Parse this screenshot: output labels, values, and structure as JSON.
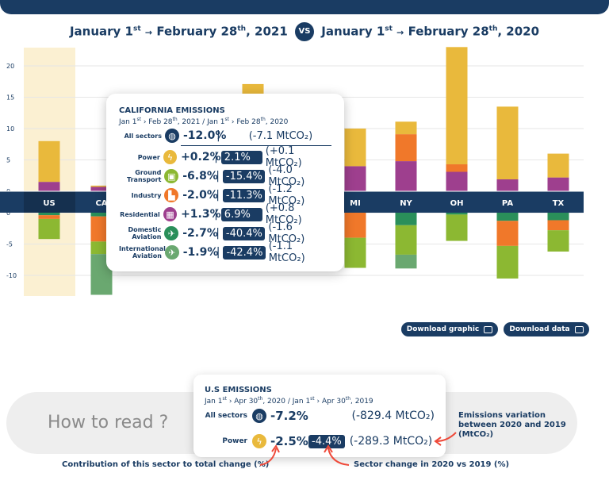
{
  "header": {
    "period_a_start": "January 1",
    "period_a_end": "February 28",
    "period_a_year": ", 2021",
    "vs": "VS",
    "period_b_start": "January 1",
    "period_b_end": "February 28",
    "period_b_year": ", 2020",
    "sup_st": "st",
    "sup_th": "th",
    "arrow": "→"
  },
  "colors": {
    "power": "#e9b93c",
    "ground_transport": "#8cb832",
    "industry": "#f0782a",
    "residential": "#9e3f8e",
    "domestic_aviation": "#2a8f5a",
    "international_aviation": "#6aa870",
    "label_band": "#1a3c63",
    "highlight": "#fbf0d2"
  },
  "chart_data": {
    "type": "bar",
    "categories": [
      "US",
      "CA",
      "",
      "",
      "",
      "",
      "MI",
      "NY",
      "OH",
      "PA",
      "TX"
    ],
    "y_ticks_top": [
      "20",
      "15",
      "10",
      "5",
      "0"
    ],
    "y_ticks_bottom": [
      "0",
      "-5",
      "-10"
    ],
    "positive_ylim": [
      0,
      22
    ],
    "negative_ylim": [
      -13,
      0
    ],
    "series_positive": [
      {
        "name": "Residential",
        "values": [
          1.5,
          0.7,
          0,
          0,
          0,
          4.0,
          4.0,
          4.8,
          3.1,
          1.9,
          2.2
        ]
      },
      {
        "name": "Industry",
        "values": [
          0,
          0,
          0,
          0,
          0,
          0,
          0,
          4.3,
          1.2,
          0,
          0
        ]
      },
      {
        "name": "Power",
        "values": [
          6.5,
          0.2,
          0,
          0,
          0,
          13.1,
          6.0,
          2.0,
          18.7,
          11.6,
          3.8
        ]
      }
    ],
    "series_negative": [
      {
        "name": "Domestic Aviation",
        "values": [
          -0.4,
          -0.6,
          0,
          0,
          0,
          0,
          0,
          -2.0,
          -0.3,
          -1.3,
          -1.2
        ]
      },
      {
        "name": "Industry",
        "values": [
          -0.6,
          -4.0,
          0,
          0,
          0,
          0,
          -4.0,
          0,
          0,
          -4.0,
          -1.6
        ]
      },
      {
        "name": "Ground Transport",
        "values": [
          -3.2,
          -2.0,
          0,
          0,
          0,
          0,
          -4.8,
          -4.7,
          -4.2,
          -5.2,
          -3.4
        ]
      },
      {
        "name": "International Aviation",
        "values": [
          0,
          -6.5,
          0,
          0,
          0,
          0,
          0,
          -2.2,
          0,
          0,
          0
        ]
      }
    ]
  },
  "tooltip": {
    "title": "CALIFORNIA EMISSIONS",
    "sub_a": "Jan 1",
    "sub_st": "st",
    "sub_arrow": " › Feb 28",
    "sub_th": "th",
    "sub_a_year": ", 2021 / Jan 1",
    "sub_st2": "st",
    "sub_arrow2": " › Feb 28",
    "sub_th2": "th",
    "sub_b_year": ", 2020",
    "all": {
      "label": "All sectors",
      "contrib": "-12.0%",
      "sep": "|",
      "abs": "(-7.1 MtCO₂)"
    },
    "rows": [
      {
        "label": "Power",
        "contrib": "+0.2%",
        "pct": "2.1%",
        "abs": "(+0.1 MtCO₂)",
        "icon": "bolt-icon"
      },
      {
        "label": "Ground Transport",
        "contrib": "-6.8%",
        "pct": "-15.4%",
        "abs": "(-4.0 MtCO₂)",
        "icon": "car-icon"
      },
      {
        "label": "Industry",
        "contrib": "-2.0%",
        "pct": "-11.3%",
        "abs": "(-1.2 MtCO₂)",
        "icon": "factory-icon"
      },
      {
        "label": "Residential",
        "contrib": "+1.3%",
        "pct": "6.9%",
        "abs": "(+0.8 MtCO₂)",
        "icon": "building-icon"
      },
      {
        "label": "Domestic Aviation",
        "contrib": "-2.7%",
        "pct": "-40.4%",
        "abs": "(-1.6 MtCO₂)",
        "icon": "plane-icon"
      },
      {
        "label": "International Aviation",
        "contrib": "-1.9%",
        "pct": "-42.4%",
        "abs": "(-1.1 MtCO₂)",
        "icon": "globe-plane-icon"
      }
    ]
  },
  "buttons": {
    "download_graphic": "Download graphic",
    "download_data": "Download data"
  },
  "how_to": {
    "label": "How to read ?",
    "card_title": "U.S EMISSIONS",
    "card_sub_a": "Jan 1",
    "card_sub_st": "st",
    "card_sub_b": " › Apr 30",
    "card_sub_th": "th",
    "card_sub_c": ", 2020 / Jan 1",
    "card_sub_st2": "st",
    "card_sub_d": " › Apr 30",
    "card_sub_th2": "th",
    "card_sub_e": ", 2019",
    "all_label": "All sectors",
    "all_contrib": "-7.2%",
    "all_abs": "(-829.4 MtCO₂)",
    "power_label": "Power",
    "power_contrib": "-2.5%",
    "power_pct": "-4.4%",
    "power_abs": "(-289.3 MtCO₂)",
    "note_variation": "Emissions variation between 2020 and 2019 (MtCO₂)",
    "note_contribution": "Contribution of this sector to total change (%)",
    "note_sector": "Sector change in 2020 vs 2019 (%)"
  }
}
